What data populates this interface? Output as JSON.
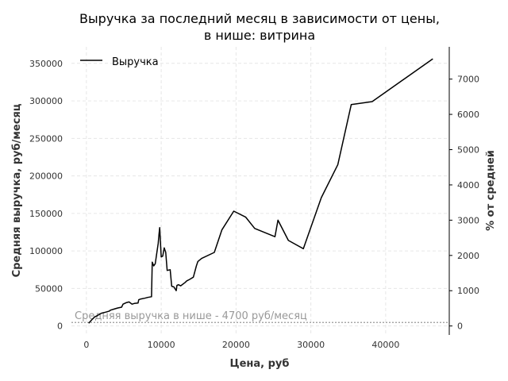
{
  "chart_data": {
    "type": "line",
    "title_line1": "Выручка за последний месяц в зависимости от цены,",
    "title_line2": "в нише: витрина",
    "xlabel": "Цена, руб",
    "ylabel": "Средняя выручка, руб/месяц",
    "ylabel_right": "% от средней",
    "xlim": [
      -2000,
      48500
    ],
    "ylim": [
      -12000,
      372000
    ],
    "ylim_right": [
      -255,
      7915
    ],
    "x_ticks": [
      0,
      10000,
      20000,
      30000,
      40000
    ],
    "y_ticks": [
      0,
      50000,
      100000,
      150000,
      200000,
      250000,
      300000,
      350000
    ],
    "y_ticks_right": [
      0,
      1000,
      2000,
      3000,
      4000,
      5000,
      6000,
      7000
    ],
    "grid": true,
    "legend_position": "top-left",
    "series": [
      {
        "name": "Выручка",
        "color": "#000000",
        "x": [
          300,
          700,
          1100,
          1500,
          2000,
          2600,
          3100,
          3200,
          3700,
          4200,
          4700,
          4900,
          5300,
          5700,
          6100,
          6400,
          6900,
          7000,
          7300,
          7800,
          8200,
          8700,
          8800,
          9000,
          9200,
          9400,
          9600,
          9700,
          9800,
          10000,
          10200,
          10400,
          10600,
          10800,
          11200,
          11400,
          11700,
          12000,
          12100,
          12300,
          12600,
          13200,
          13400,
          13800,
          14300,
          14700,
          14900,
          15400,
          17100,
          18100,
          19700,
          21300,
          22500,
          25200,
          25600,
          27000,
          29000,
          31400,
          33600,
          35400,
          38200,
          46300
        ],
        "y": [
          3500,
          8000,
          12000,
          14000,
          17000,
          18500,
          20000,
          21000,
          22500,
          24000,
          25000,
          29000,
          31000,
          32000,
          29000,
          30000,
          30500,
          35000,
          36000,
          37000,
          38000,
          39000,
          85000,
          80000,
          83000,
          97000,
          110000,
          122000,
          131000,
          92000,
          93000,
          104000,
          98000,
          74000,
          75000,
          53000,
          52000,
          47000,
          54000,
          55000,
          53500,
          58000,
          60000,
          62000,
          65000,
          80000,
          86000,
          90000,
          98000,
          128000,
          153000,
          145000,
          130000,
          119000,
          141000,
          114000,
          103000,
          171000,
          215000,
          295000,
          299000,
          356000
        ]
      }
    ],
    "reference_line": {
      "value": 4700,
      "label": "Средняя выручка в нише - 4700 руб/месяц",
      "color": "#999999"
    }
  }
}
